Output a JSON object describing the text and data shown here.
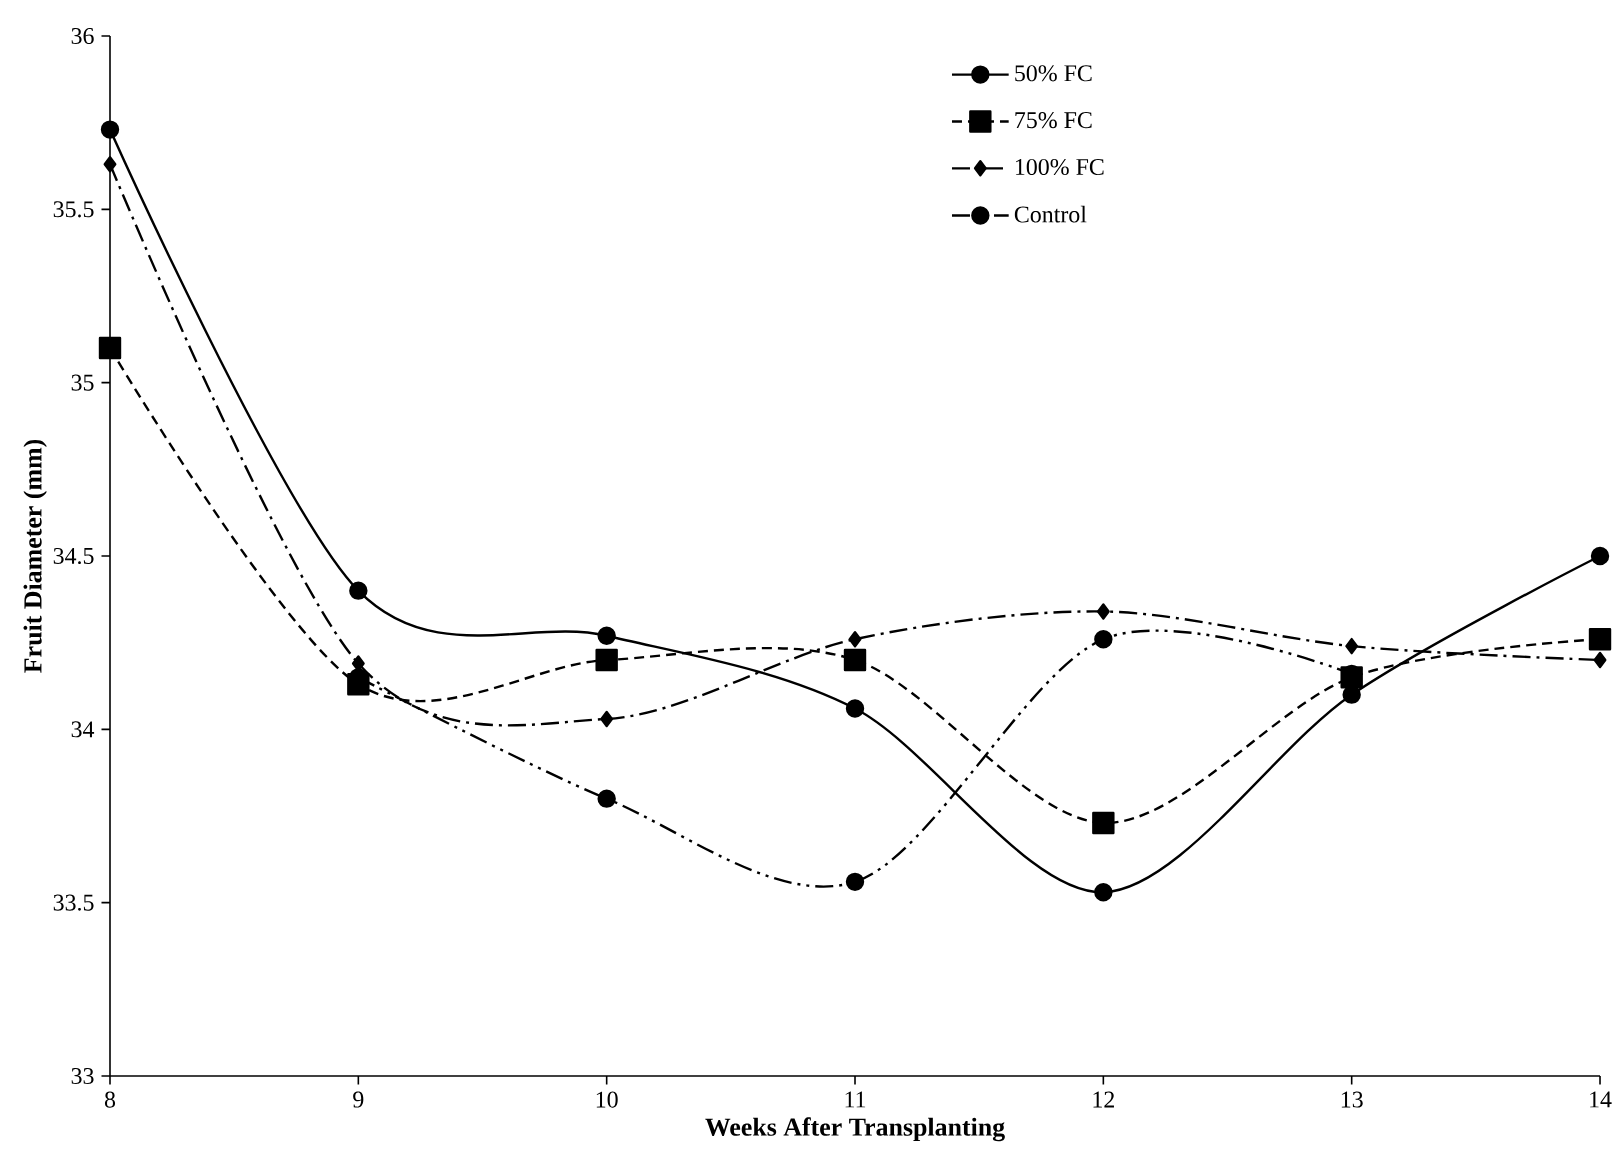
{
  "chart_data": {
    "type": "line",
    "xlabel": "Weeks After Transplanting",
    "ylabel": "Fruit Diameter (mm)",
    "x": [
      8,
      9,
      10,
      11,
      12,
      13,
      14
    ],
    "xlim": [
      8,
      14
    ],
    "xticks": [
      8,
      9,
      10,
      11,
      12,
      13,
      14
    ],
    "ylim": [
      33,
      36
    ],
    "yticks": [
      33,
      33.5,
      34,
      34.5,
      35,
      35.5,
      36
    ],
    "grid": false,
    "legend": "top right",
    "series": [
      {
        "name": "50% FC",
        "color": "#000000",
        "marker": "circle",
        "line_style": "solid",
        "values": [
          35.73,
          34.4,
          34.27,
          34.06,
          33.53,
          34.1,
          34.5
        ]
      },
      {
        "name": "75% FC",
        "color": "#000000",
        "marker": "square",
        "line_style": "dashed",
        "values": [
          35.1,
          34.13,
          34.2,
          34.2,
          33.73,
          34.15,
          34.26
        ]
      },
      {
        "name": "100% FC",
        "color": "#000000",
        "marker": "diamond",
        "line_style": "dashdot",
        "values": [
          35.63,
          34.19,
          34.03,
          34.26,
          34.34,
          34.24,
          34.2
        ]
      },
      {
        "name": "Control",
        "color": "#000000",
        "marker": "circle",
        "line_style": "dashdotdot",
        "values": [
          null,
          34.15,
          33.8,
          33.56,
          34.26,
          34.16,
          null
        ]
      }
    ]
  }
}
